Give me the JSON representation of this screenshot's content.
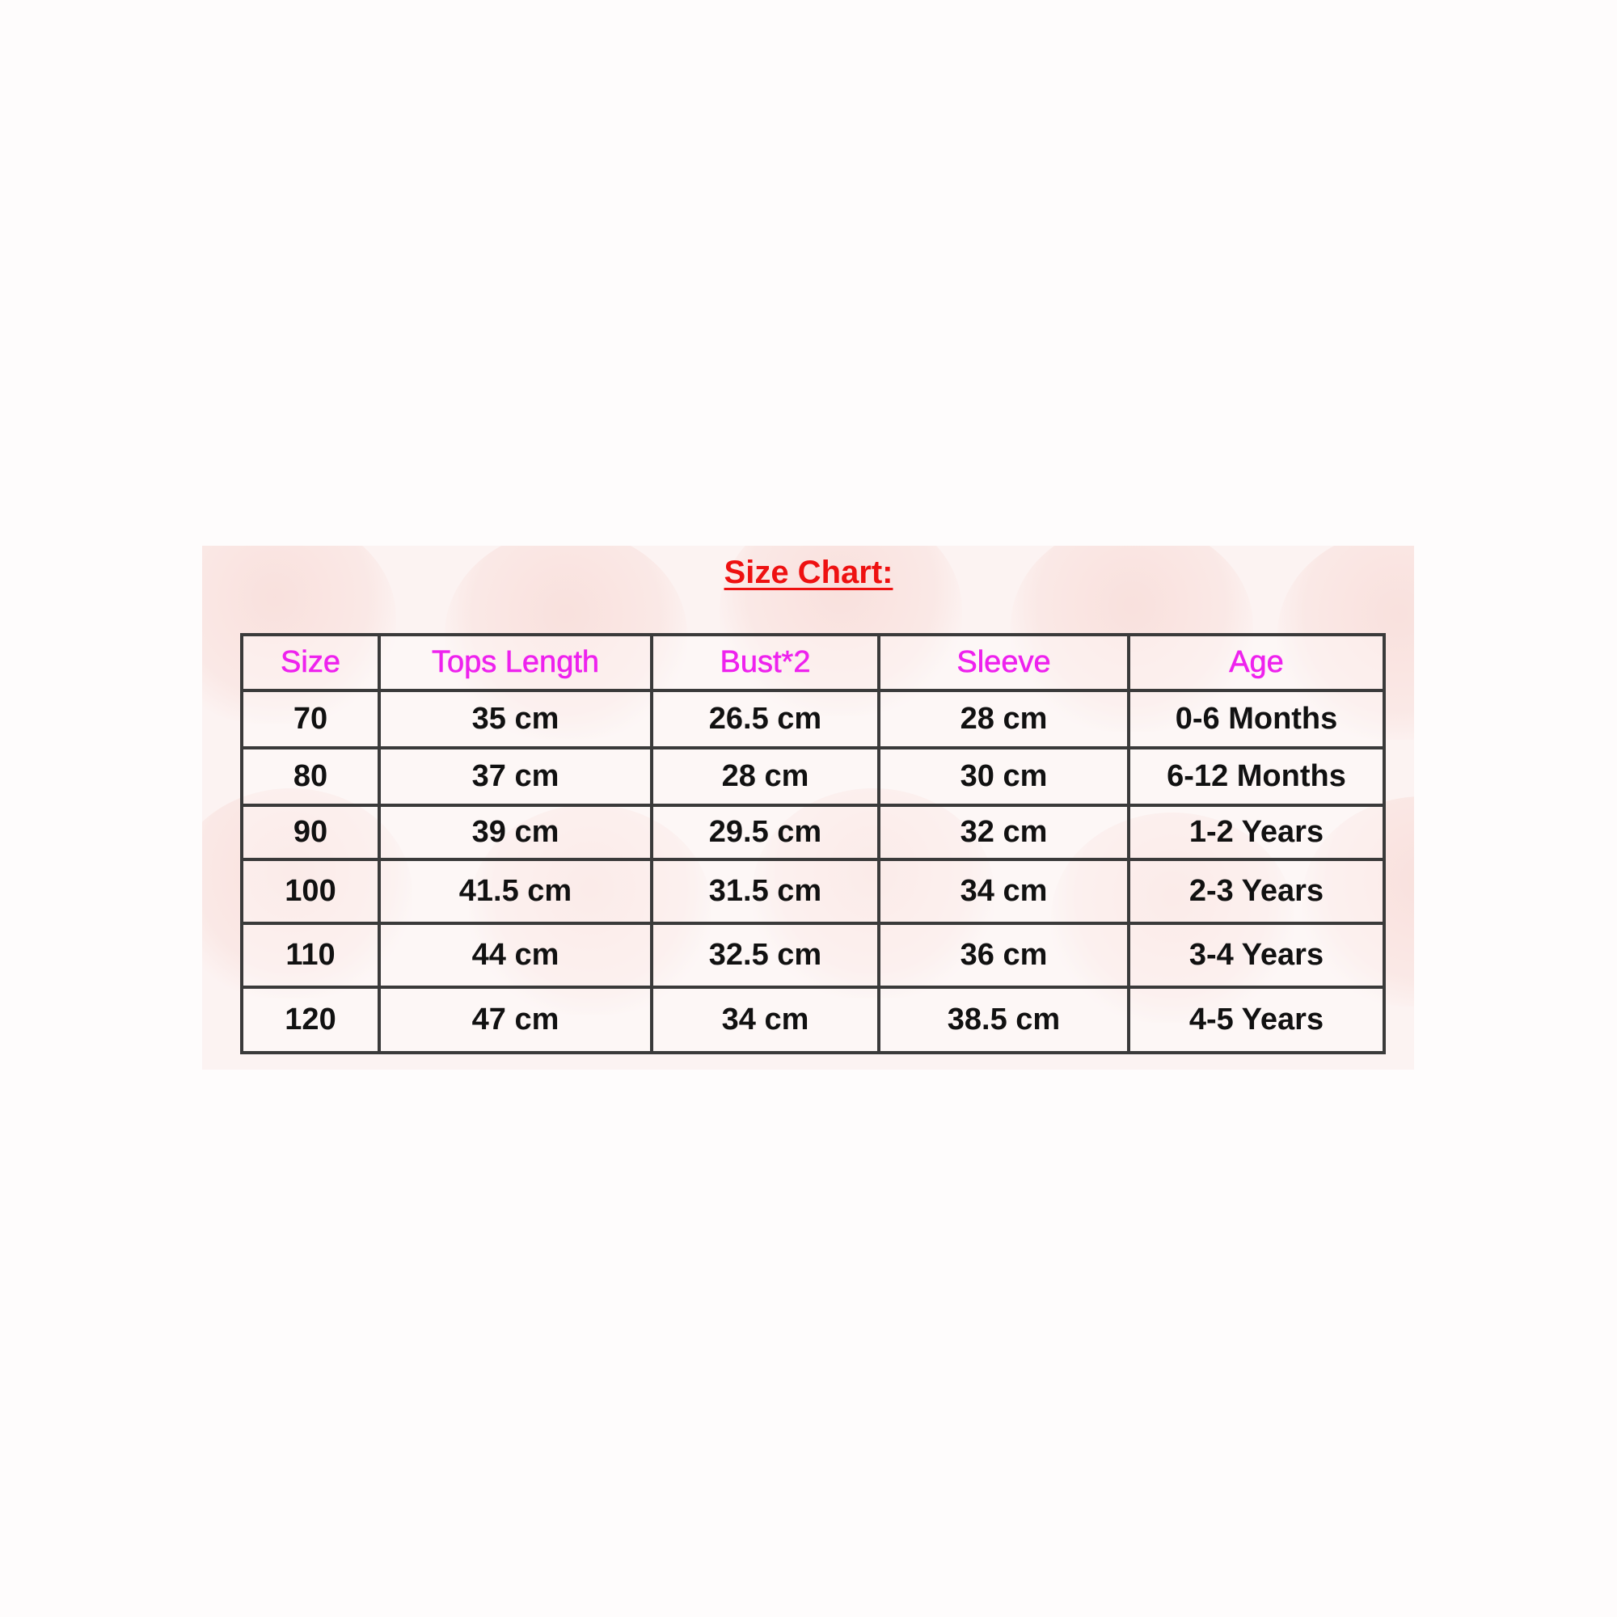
{
  "title": "Size Chart:",
  "headers": [
    "Size",
    "Tops Length",
    "Bust*2",
    "Sleeve",
    "Age"
  ],
  "rows": [
    [
      "70",
      "35 cm",
      "26.5 cm",
      "28 cm",
      "0-6 Months"
    ],
    [
      "80",
      "37 cm",
      "28 cm",
      "30 cm",
      "6-12 Months"
    ],
    [
      "90",
      "39 cm",
      "29.5 cm",
      "32 cm",
      "1-2 Years"
    ],
    [
      "100",
      "41.5 cm",
      "31.5 cm",
      "34 cm",
      "2-3 Years"
    ],
    [
      "110",
      "44 cm",
      "32.5 cm",
      "36 cm",
      "3-4 Years"
    ],
    [
      "120",
      "47 cm",
      "34 cm",
      "38.5 cm",
      "4-5 Years"
    ]
  ],
  "colors": {
    "title": "#ee1111",
    "header": "#ee22ee",
    "border": "#3a3a3a"
  }
}
